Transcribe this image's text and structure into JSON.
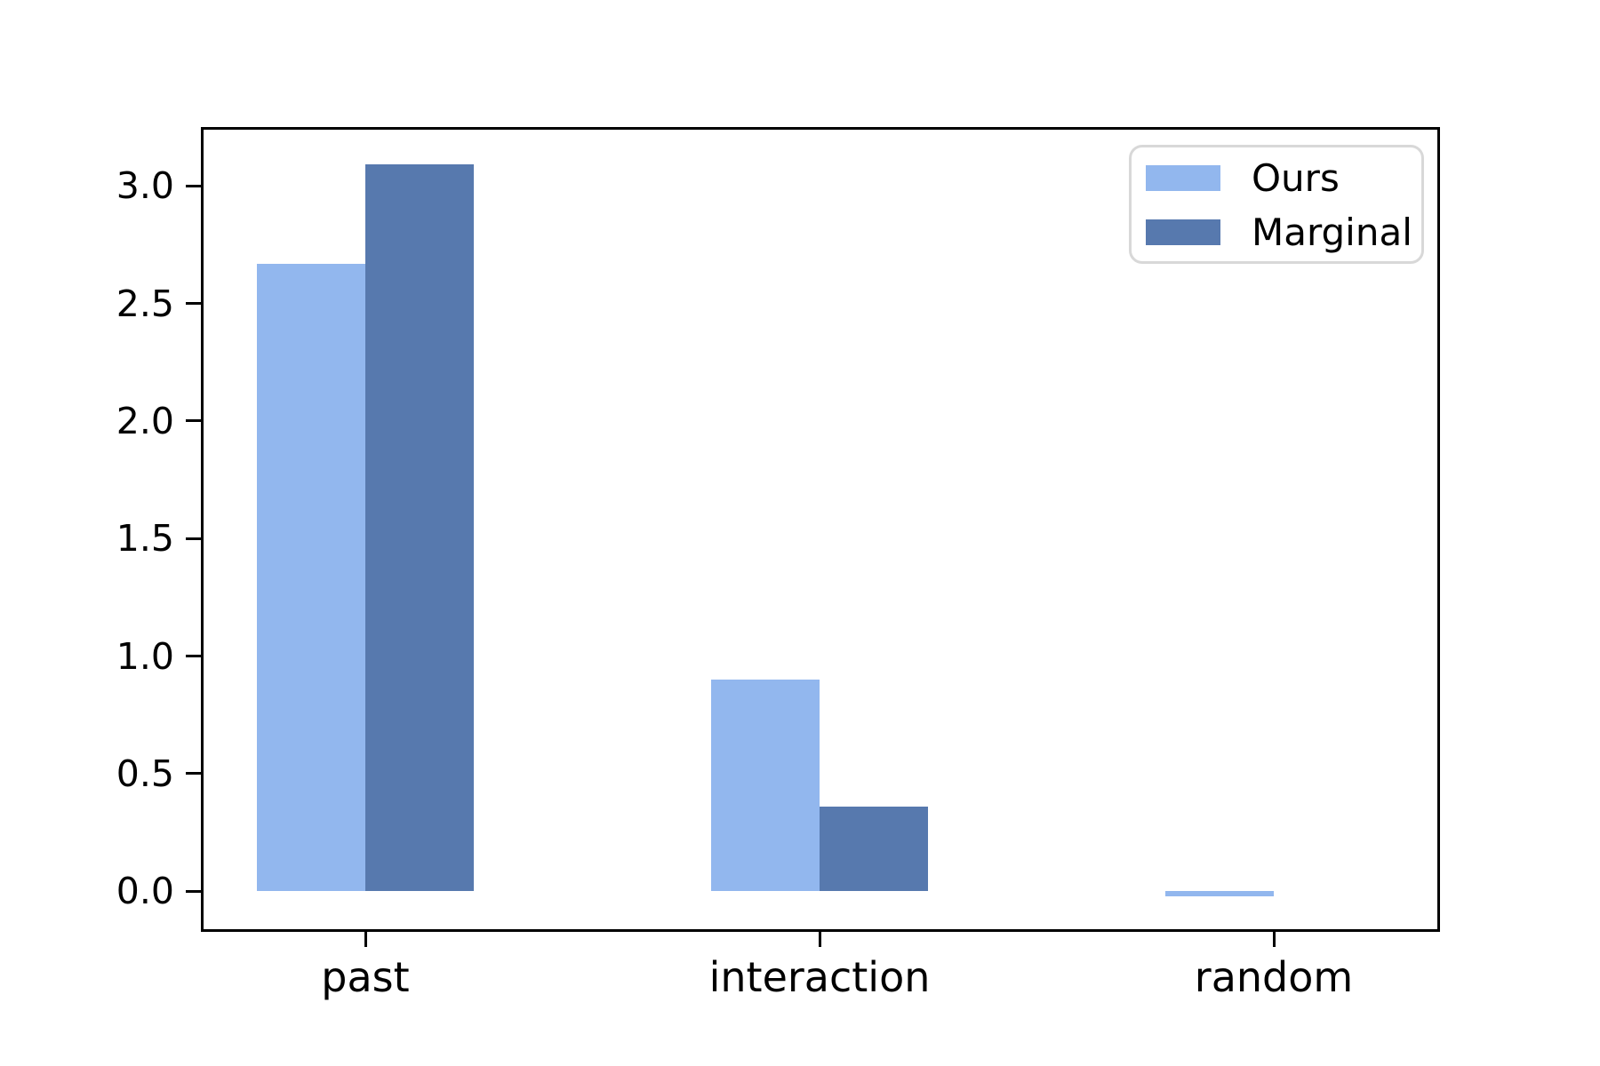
{
  "chart_data": {
    "type": "bar",
    "title": "",
    "xlabel": "",
    "ylabel": "",
    "categories": [
      "past",
      "interaction",
      "random"
    ],
    "series": [
      {
        "name": "Ours",
        "color": "#92b7ee",
        "values": [
          2.67,
          0.9,
          -0.02
        ]
      },
      {
        "name": "Marginal",
        "color": "#5779ae",
        "values": [
          3.09,
          0.36,
          0.0
        ]
      }
    ],
    "yticks": [
      0.0,
      0.5,
      1.0,
      1.5,
      2.0,
      2.5,
      3.0
    ],
    "ytick_labels": [
      "0.0",
      "0.5",
      "1.0",
      "1.5",
      "2.0",
      "2.5",
      "3.0"
    ],
    "ylim": [
      -0.17,
      3.25
    ],
    "grid": false,
    "legend_position": "upper right",
    "legend_entries": [
      "Ours",
      "Marginal"
    ]
  },
  "colors": {
    "background": "#ffffff",
    "spine": "#000000",
    "text": "#000000",
    "legend_border": "#d8d8d8"
  }
}
